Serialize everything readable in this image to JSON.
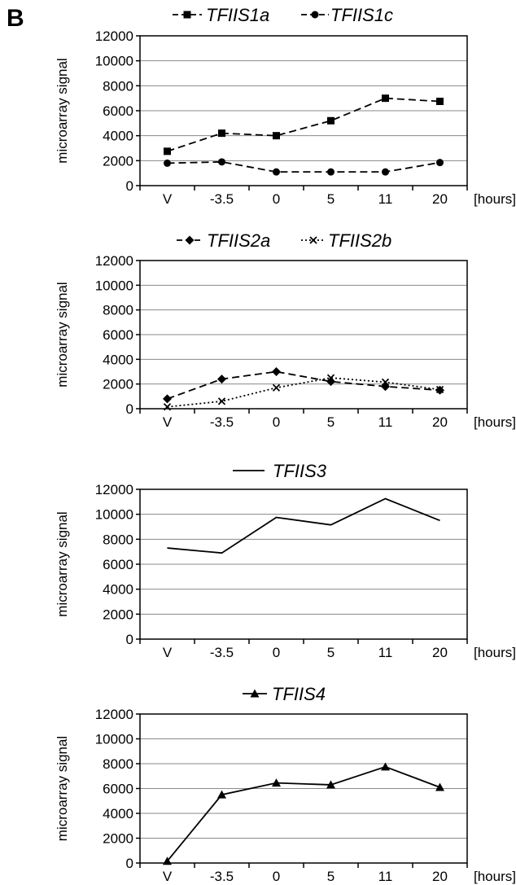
{
  "panel_label": "B",
  "chart_data": [
    {
      "type": "line",
      "categories": [
        "V",
        "-3.5",
        "0",
        "5",
        "11",
        "20"
      ],
      "x_unit": "[hours]",
      "ylabel": "microarray signal",
      "ylim": [
        0,
        12000
      ],
      "yticks": [
        0,
        2000,
        4000,
        6000,
        8000,
        10000,
        12000
      ],
      "grid": true,
      "legend_position": "top",
      "series": [
        {
          "name": "TFIIS1a",
          "marker": "square",
          "dash": "dash",
          "values": [
            2750,
            4200,
            4000,
            5200,
            7000,
            6750
          ]
        },
        {
          "name": "TFIIS1c",
          "marker": "circle",
          "dash": "dash",
          "values": [
            1800,
            1900,
            1100,
            1100,
            1100,
            1850
          ]
        }
      ]
    },
    {
      "type": "line",
      "categories": [
        "V",
        "-3.5",
        "0",
        "5",
        "11",
        "20"
      ],
      "x_unit": "[hours]",
      "ylabel": "microarray signal",
      "ylim": [
        0,
        12000
      ],
      "yticks": [
        0,
        2000,
        4000,
        6000,
        8000,
        10000,
        12000
      ],
      "grid": true,
      "legend_position": "top",
      "series": [
        {
          "name": "TFIIS2a",
          "marker": "diamond",
          "dash": "dash",
          "values": [
            800,
            2400,
            3000,
            2200,
            1800,
            1500
          ]
        },
        {
          "name": "TFIIS2b",
          "marker": "x",
          "dash": "dot",
          "values": [
            150,
            600,
            1700,
            2500,
            2150,
            1550
          ]
        }
      ]
    },
    {
      "type": "line",
      "categories": [
        "V",
        "-3.5",
        "0",
        "5",
        "11",
        "20"
      ],
      "x_unit": "[hours]",
      "ylabel": "microarray signal",
      "ylim": [
        0,
        12000
      ],
      "yticks": [
        0,
        2000,
        4000,
        6000,
        8000,
        10000,
        12000
      ],
      "grid": true,
      "legend_position": "top",
      "series": [
        {
          "name": "TFIIS3",
          "marker": "none",
          "dash": "solid",
          "values": [
            7300,
            6900,
            9750,
            9150,
            11250,
            9500
          ]
        }
      ]
    },
    {
      "type": "line",
      "categories": [
        "V",
        "-3.5",
        "0",
        "5",
        "11",
        "20"
      ],
      "x_unit": "[hours]",
      "ylabel": "microarray signal",
      "ylim": [
        0,
        12000
      ],
      "yticks": [
        0,
        2000,
        4000,
        6000,
        8000,
        10000,
        12000
      ],
      "grid": true,
      "legend_position": "top",
      "series": [
        {
          "name": "TFIIS4",
          "marker": "triangle",
          "dash": "solid",
          "values": [
            150,
            5500,
            6450,
            6300,
            7750,
            6100
          ]
        }
      ]
    }
  ]
}
